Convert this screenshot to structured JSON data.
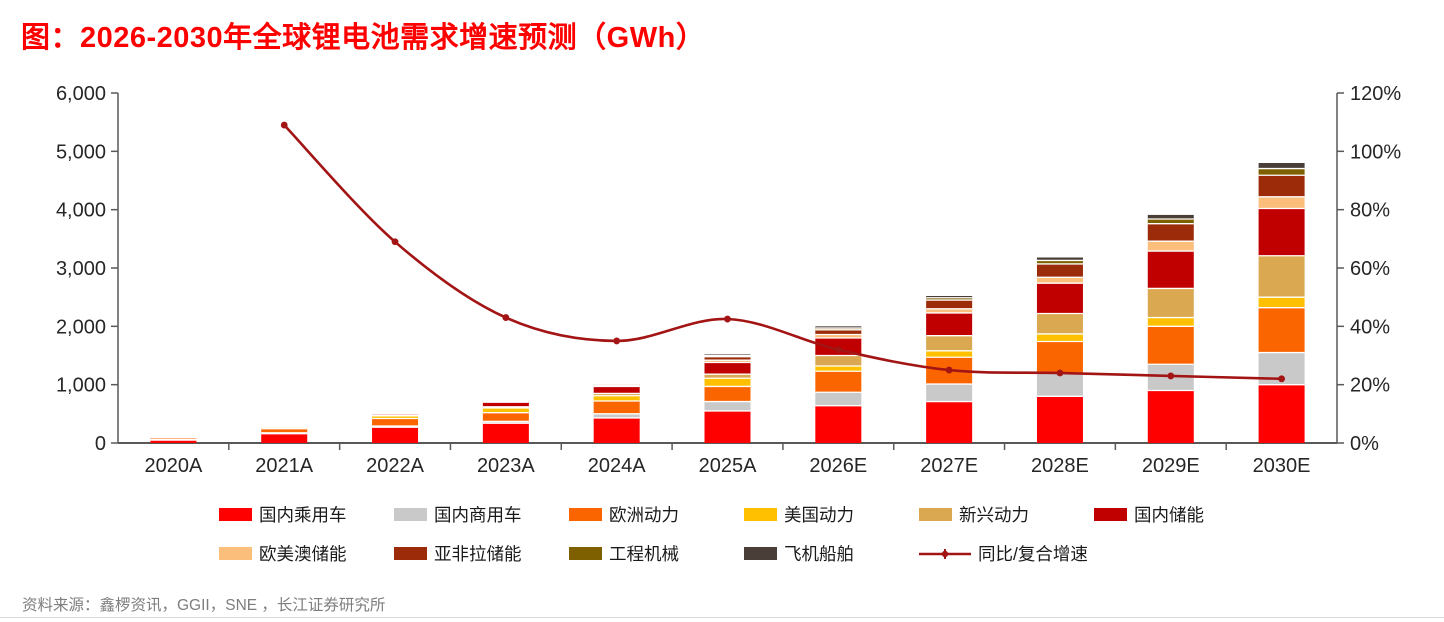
{
  "title": "图：2026-2030年全球锂电池需求增速预测（GWh）",
  "source": "资料来源：鑫椤资讯，GGII，SNE ，长江证券研究所",
  "colors": {
    "title_red": "#FE0000",
    "axis_line": "#595959",
    "tick_text": "#262626",
    "source_text": "#7E7E7E",
    "growth_line": "#A31414",
    "segment_divider": "#FFFFFF"
  },
  "chart_data": {
    "type": "bar",
    "subtype": "stacked-bars-with-line-overlay",
    "title": "图：2026-2030年全球锂电池需求增速预测（GWh）",
    "unit_bars": "GWh",
    "unit_line": "%",
    "grid": "off",
    "legend_position": "bottom",
    "categories": [
      "2020A",
      "2021A",
      "2022A",
      "2023A",
      "2024A",
      "2025A",
      "2026E",
      "2027E",
      "2028E",
      "2029E",
      "2030E"
    ],
    "series": [
      {
        "name": "国内乘用车",
        "color": "#FE0000",
        "values": [
          50,
          160,
          270,
          340,
          430,
          550,
          640,
          710,
          800,
          900,
          1000
        ]
      },
      {
        "name": "国内商用车",
        "color": "#C9C9C9",
        "values": [
          8,
          15,
          20,
          30,
          70,
          160,
          230,
          300,
          400,
          450,
          550
        ]
      },
      {
        "name": "欧洲动力",
        "color": "#FB6500",
        "values": [
          30,
          70,
          130,
          150,
          220,
          260,
          360,
          460,
          540,
          650,
          770
        ]
      },
      {
        "name": "美国动力",
        "color": "#FFC000",
        "values": [
          8,
          25,
          45,
          80,
          90,
          140,
          90,
          110,
          130,
          150,
          180
        ]
      },
      {
        "name": "新兴动力",
        "color": "#D9A850",
        "values": [
          2,
          5,
          8,
          20,
          40,
          70,
          180,
          260,
          350,
          500,
          710
        ]
      },
      {
        "name": "国内储能",
        "color": "#C00000",
        "values": [
          6,
          15,
          25,
          80,
          120,
          200,
          300,
          390,
          520,
          640,
          810
        ]
      },
      {
        "name": "欧美澳储能",
        "color": "#FBBE7B",
        "values": [
          3,
          5,
          6,
          20,
          20,
          40,
          60,
          70,
          100,
          170,
          200
        ]
      },
      {
        "name": "亚非拉储能",
        "color": "#9C2B0A",
        "values": [
          2,
          3,
          4,
          15,
          20,
          60,
          80,
          150,
          230,
          300,
          370
        ]
      },
      {
        "name": "工程机械",
        "color": "#7F6000",
        "values": [
          0.5,
          1,
          1,
          5,
          5,
          20,
          30,
          40,
          60,
          80,
          115
        ]
      },
      {
        "name": "飞机船舶",
        "color": "#4A3E38",
        "values": [
          0.5,
          1,
          1,
          5,
          5,
          20,
          30,
          30,
          50,
          70,
          95
        ]
      }
    ],
    "line_series": {
      "name": "同比/复合增速",
      "color": "#A31414",
      "values_percent": [
        null,
        109,
        69,
        43,
        35,
        42.5,
        32,
        25,
        24,
        23,
        22
      ]
    },
    "left_axis": {
      "min": 0,
      "max": 6000,
      "step": 1000,
      "tick_labels": [
        "0",
        "1,000",
        "2,000",
        "3,000",
        "4,000",
        "5,000",
        "6,000"
      ]
    },
    "right_axis": {
      "min": 0,
      "max": 120,
      "step": 20,
      "tick_labels": [
        "0%",
        "20%",
        "40%",
        "60%",
        "80%",
        "100%",
        "120%"
      ]
    }
  }
}
